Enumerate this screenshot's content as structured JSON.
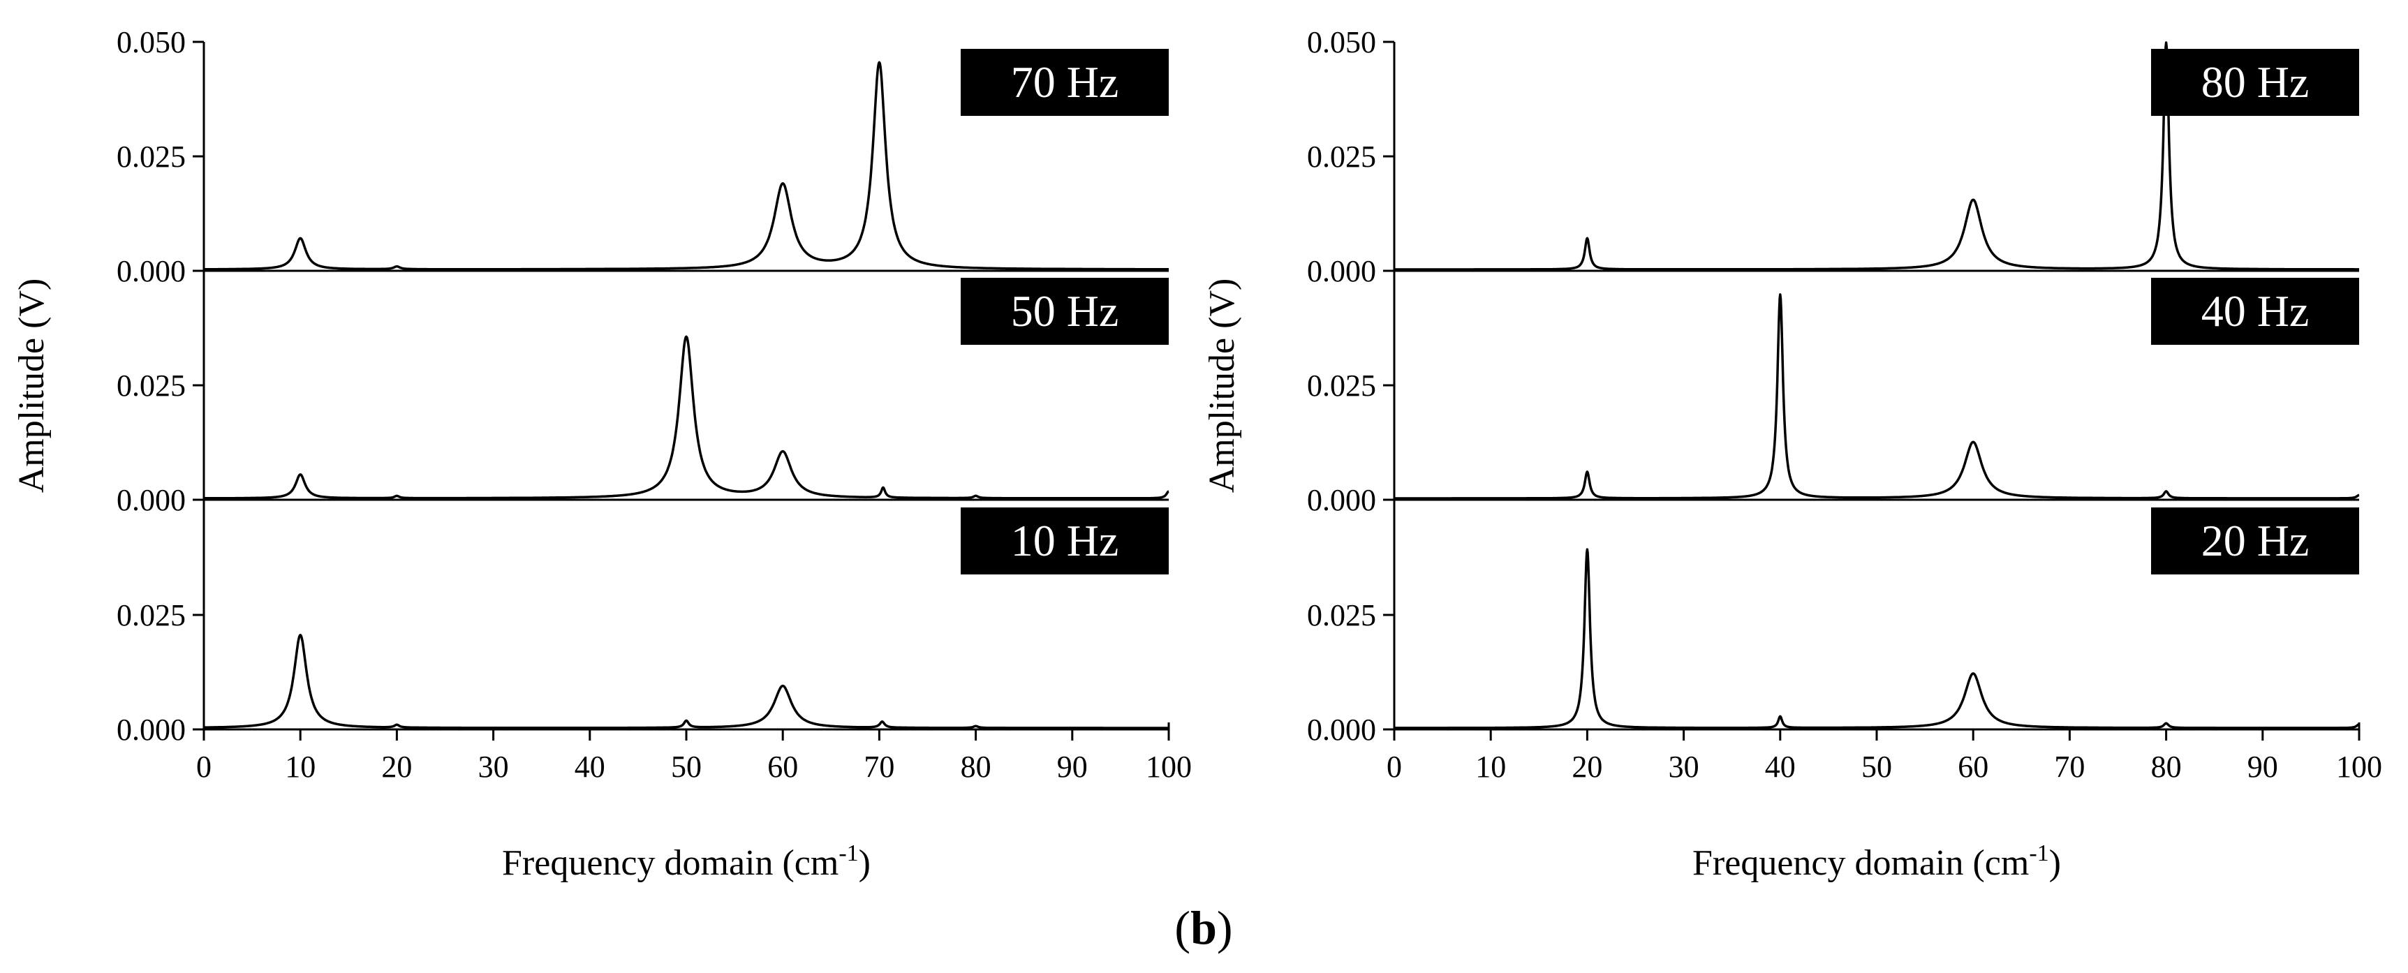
{
  "figure_label": "(b)",
  "chart_data": [
    {
      "type": "line",
      "name": "left",
      "xlabel": "Frequency domain (cm",
      "xlabel_sup": "-1",
      "xlabel_close": ")",
      "ylabel": "Amplitude (V)",
      "xlim": [
        0,
        100
      ],
      "xticks": [
        0,
        10,
        20,
        30,
        40,
        50,
        60,
        70,
        80,
        90,
        100
      ],
      "xtick_labels": [
        "0",
        "10",
        "20",
        "30",
        "40",
        "50",
        "60",
        "70",
        "80",
        "90",
        "100"
      ],
      "panels": [
        {
          "label": "70 Hz",
          "ylim": [
            0,
            0.05
          ],
          "yticks": [
            "0.000",
            "0.025",
            "0.050"
          ],
          "peaks": [
            [
              10,
              0.0068,
              0.7
            ],
            [
              20,
              0.0006,
              0.4
            ],
            [
              60,
              0.0185,
              1.1
            ],
            [
              70,
              0.045,
              0.8
            ]
          ]
        },
        {
          "label": "50 Hz",
          "ylim": [
            0,
            0.05
          ],
          "yticks": [
            "0.000",
            "0.025"
          ],
          "peaks": [
            [
              10,
              0.0052,
              0.6
            ],
            [
              20,
              0.0005,
              0.3
            ],
            [
              50,
              0.0352,
              0.9
            ],
            [
              60,
              0.01,
              1.1
            ],
            [
              70.4,
              0.0022,
              0.25
            ],
            [
              80,
              0.0005,
              0.3
            ],
            [
              100,
              0.0015,
              0.3
            ]
          ]
        },
        {
          "label": "10 Hz",
          "ylim": [
            0,
            0.05
          ],
          "yticks": [
            "0.000",
            "0.025"
          ],
          "peaks": [
            [
              10,
              0.0203,
              0.8
            ],
            [
              20,
              0.0006,
              0.3
            ],
            [
              50,
              0.0015,
              0.3
            ],
            [
              60,
              0.0092,
              1.1
            ],
            [
              70.3,
              0.0013,
              0.3
            ],
            [
              80,
              0.0004,
              0.3
            ]
          ]
        }
      ]
    },
    {
      "type": "line",
      "name": "right",
      "xlabel": "Frequency domain (cm",
      "xlabel_sup": "-1",
      "xlabel_close": ")",
      "ylabel": "Amplitude (V)",
      "xlim": [
        0,
        100
      ],
      "xticks": [
        0,
        10,
        20,
        30,
        40,
        50,
        60,
        70,
        80,
        90,
        100
      ],
      "xtick_labels": [
        "0",
        "10",
        "20",
        "30",
        "40",
        "50",
        "60",
        "70",
        "80",
        "90",
        "100"
      ],
      "panels": [
        {
          "label": "80 Hz",
          "ylim": [
            0,
            0.05
          ],
          "yticks": [
            "0.000",
            "0.025",
            "0.050"
          ],
          "peaks": [
            [
              20,
              0.0068,
              0.3
            ],
            [
              60,
              0.0152,
              1.1
            ],
            [
              80,
              0.0495,
              0.35
            ]
          ]
        },
        {
          "label": "40 Hz",
          "ylim": [
            0,
            0.05
          ],
          "yticks": [
            "0.000",
            "0.025"
          ],
          "peaks": [
            [
              20,
              0.0058,
              0.3
            ],
            [
              40,
              0.0445,
              0.35
            ],
            [
              60,
              0.0123,
              1.1
            ],
            [
              80,
              0.0015,
              0.3
            ],
            [
              100,
              0.0007,
              0.3
            ]
          ]
        },
        {
          "label": "20 Hz",
          "ylim": [
            0,
            0.05
          ],
          "yticks": [
            "0.000",
            "0.025"
          ],
          "peaks": [
            [
              20,
              0.039,
              0.35
            ],
            [
              40,
              0.0025,
              0.25
            ],
            [
              60,
              0.0119,
              1.1
            ],
            [
              80,
              0.001,
              0.3
            ],
            [
              100,
              0.0008,
              0.3
            ]
          ]
        }
      ]
    }
  ]
}
